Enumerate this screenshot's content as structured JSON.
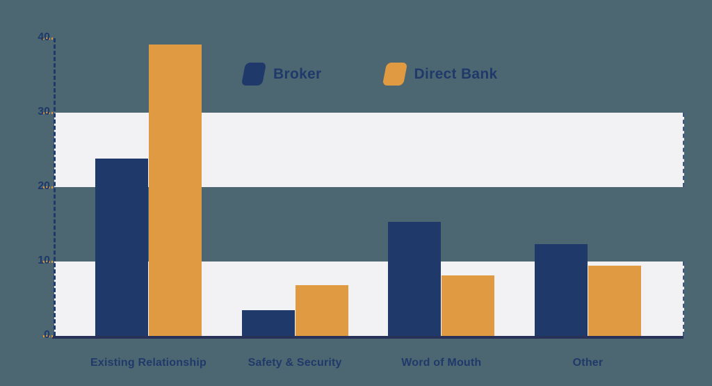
{
  "colors": {
    "background": "#4c6771",
    "band": "#f2f1f3",
    "navy": "#1f396b",
    "orange": "#e09a42",
    "axis_line": "#283157",
    "tick_orange": "#dd9a44"
  },
  "chart_data": {
    "type": "bar",
    "title": "",
    "xlabel": "",
    "ylabel": "",
    "categories": [
      "Existing Relationship",
      "Safety & Security",
      "Word of Mouth",
      "Other"
    ],
    "series": [
      {
        "name": "Broker",
        "color": "#1f396b",
        "values": [
          23.8,
          3.5,
          15.3,
          12.3
        ]
      },
      {
        "name": "Direct Bank",
        "color": "#e09a42",
        "values": [
          39.2,
          6.8,
          8.1,
          9.4
        ]
      }
    ],
    "ylim": [
      0,
      40
    ],
    "y_ticks": [
      0,
      10,
      20,
      30,
      40
    ],
    "y_tick_labels": [
      "0",
      "10",
      "20",
      "30",
      "40"
    ],
    "grid": "alternating-horizontal-bands",
    "band_ranges": [
      [
        0,
        10
      ],
      [
        20,
        30
      ]
    ],
    "legend_position": "top-center"
  }
}
